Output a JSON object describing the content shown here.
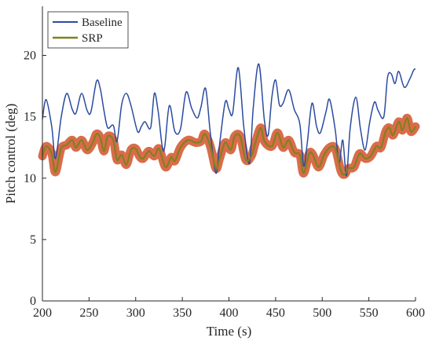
{
  "chart_data": {
    "type": "line",
    "title": "",
    "xlabel": "Time (s)",
    "ylabel": "Pitch control (deg)",
    "xlim": [
      200,
      600
    ],
    "ylim": [
      0,
      24
    ],
    "xticks": [
      200,
      250,
      300,
      350,
      400,
      450,
      500,
      550,
      600
    ],
    "yticks": [
      0,
      5,
      10,
      15,
      20
    ],
    "grid": false,
    "legend_position": "top-left",
    "series": [
      {
        "name": "Baseline",
        "color": "#2b4ba0",
        "points": [
          [
            200,
            14.8
          ],
          [
            204,
            16.4
          ],
          [
            210,
            14.2
          ],
          [
            214,
            11.6
          ],
          [
            220,
            14.9
          ],
          [
            226,
            16.9
          ],
          [
            232,
            15.6
          ],
          [
            236,
            15.3
          ],
          [
            242,
            16.9
          ],
          [
            248,
            15.5
          ],
          [
            252,
            15.4
          ],
          [
            258,
            17.9
          ],
          [
            262,
            17.3
          ],
          [
            266,
            15.5
          ],
          [
            270,
            14.1
          ],
          [
            276,
            14.3
          ],
          [
            280,
            13.0
          ],
          [
            285,
            16.0
          ],
          [
            290,
            16.9
          ],
          [
            295,
            15.9
          ],
          [
            302,
            13.8
          ],
          [
            306,
            14.2
          ],
          [
            310,
            14.6
          ],
          [
            316,
            14.1
          ],
          [
            320,
            16.9
          ],
          [
            324,
            15.5
          ],
          [
            330,
            12.2
          ],
          [
            336,
            15.9
          ],
          [
            342,
            13.8
          ],
          [
            348,
            14.0
          ],
          [
            354,
            17.0
          ],
          [
            360,
            15.7
          ],
          [
            366,
            14.9
          ],
          [
            370,
            15.8
          ],
          [
            375,
            17.3
          ],
          [
            380,
            13.7
          ],
          [
            386,
            10.4
          ],
          [
            390,
            12.8
          ],
          [
            396,
            16.2
          ],
          [
            400,
            15.6
          ],
          [
            404,
            15.3
          ],
          [
            410,
            19.0
          ],
          [
            416,
            14.1
          ],
          [
            422,
            11.2
          ],
          [
            426,
            15.7
          ],
          [
            432,
            19.3
          ],
          [
            438,
            14.7
          ],
          [
            442,
            13.5
          ],
          [
            446,
            16.6
          ],
          [
            450,
            18.0
          ],
          [
            454,
            16.0
          ],
          [
            458,
            16.1
          ],
          [
            464,
            17.2
          ],
          [
            470,
            15.6
          ],
          [
            476,
            14.4
          ],
          [
            480,
            11.0
          ],
          [
            484,
            12.9
          ],
          [
            489,
            16.1
          ],
          [
            494,
            14.2
          ],
          [
            498,
            13.7
          ],
          [
            504,
            15.4
          ],
          [
            508,
            16.4
          ],
          [
            514,
            13.9
          ],
          [
            518,
            11.2
          ],
          [
            522,
            13.1
          ],
          [
            526,
            10.2
          ],
          [
            530,
            14.1
          ],
          [
            536,
            16.6
          ],
          [
            541,
            14.0
          ],
          [
            546,
            12.3
          ],
          [
            551,
            14.6
          ],
          [
            556,
            16.2
          ],
          [
            560,
            15.5
          ],
          [
            566,
            15.0
          ],
          [
            570,
            18.2
          ],
          [
            574,
            18.5
          ],
          [
            578,
            17.7
          ],
          [
            582,
            18.7
          ],
          [
            588,
            17.4
          ],
          [
            594,
            18.1
          ],
          [
            598,
            18.8
          ],
          [
            600,
            18.9
          ]
        ]
      },
      {
        "name": "SRP",
        "color": "#808020",
        "band_color": "#d4522a",
        "band_halfwidth": 0.35,
        "points": [
          [
            200,
            11.8
          ],
          [
            204,
            12.6
          ],
          [
            210,
            12.0
          ],
          [
            214,
            10.5
          ],
          [
            220,
            12.4
          ],
          [
            226,
            12.7
          ],
          [
            232,
            13.1
          ],
          [
            236,
            12.5
          ],
          [
            242,
            13.1
          ],
          [
            248,
            12.3
          ],
          [
            254,
            12.9
          ],
          [
            258,
            13.6
          ],
          [
            262,
            13.3
          ],
          [
            266,
            12.2
          ],
          [
            270,
            13.4
          ],
          [
            276,
            13.1
          ],
          [
            280,
            11.5
          ],
          [
            285,
            11.9
          ],
          [
            290,
            11.1
          ],
          [
            295,
            12.3
          ],
          [
            300,
            12.4
          ],
          [
            304,
            11.8
          ],
          [
            308,
            11.6
          ],
          [
            314,
            12.2
          ],
          [
            320,
            11.8
          ],
          [
            325,
            12.4
          ],
          [
            332,
            10.9
          ],
          [
            338,
            11.7
          ],
          [
            342,
            11.4
          ],
          [
            348,
            12.5
          ],
          [
            356,
            13.1
          ],
          [
            364,
            12.9
          ],
          [
            370,
            13.0
          ],
          [
            374,
            13.6
          ],
          [
            380,
            12.6
          ],
          [
            386,
            10.8
          ],
          [
            390,
            11.6
          ],
          [
            396,
            12.9
          ],
          [
            402,
            12.3
          ],
          [
            406,
            13.4
          ],
          [
            412,
            13.4
          ],
          [
            418,
            11.5
          ],
          [
            424,
            11.8
          ],
          [
            428,
            12.8
          ],
          [
            434,
            14.1
          ],
          [
            438,
            13.0
          ],
          [
            446,
            12.6
          ],
          [
            452,
            13.7
          ],
          [
            458,
            12.5
          ],
          [
            464,
            13.1
          ],
          [
            470,
            12.1
          ],
          [
            476,
            11.9
          ],
          [
            480,
            10.4
          ],
          [
            486,
            12.0
          ],
          [
            490,
            11.9
          ],
          [
            496,
            10.9
          ],
          [
            502,
            11.9
          ],
          [
            508,
            12.5
          ],
          [
            514,
            12.4
          ],
          [
            520,
            10.6
          ],
          [
            524,
            10.3
          ],
          [
            528,
            10.8
          ],
          [
            534,
            10.9
          ],
          [
            540,
            12.0
          ],
          [
            546,
            11.6
          ],
          [
            552,
            11.8
          ],
          [
            558,
            12.6
          ],
          [
            563,
            12.5
          ],
          [
            568,
            13.8
          ],
          [
            572,
            14.1
          ],
          [
            576,
            13.5
          ],
          [
            582,
            14.6
          ],
          [
            586,
            13.9
          ],
          [
            591,
            14.9
          ],
          [
            595,
            13.8
          ],
          [
            600,
            14.2
          ]
        ]
      }
    ]
  }
}
